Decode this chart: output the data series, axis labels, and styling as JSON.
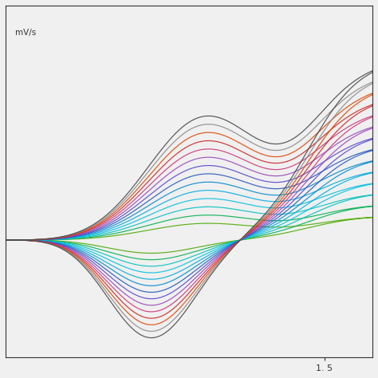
{
  "n_curves": 14,
  "colors": [
    "#4aaa00",
    "#00b050",
    "#00bfbf",
    "#00c0e0",
    "#00aadd",
    "#0088cc",
    "#2255bb",
    "#5544cc",
    "#9944bb",
    "#cc3377",
    "#cc2222",
    "#dd4400",
    "#888888",
    "#444444"
  ],
  "x_min": 0.5,
  "x_max": 1.65,
  "y_min": -2.5,
  "y_max": 5.0,
  "bg_color": "#f0f0f0",
  "spine_color": "#333333",
  "tick_labelsize": 8,
  "x_tick_val": 1.5,
  "x_tick_label": "1. 5",
  "label_text": "mV/s",
  "linewidth": 0.85
}
